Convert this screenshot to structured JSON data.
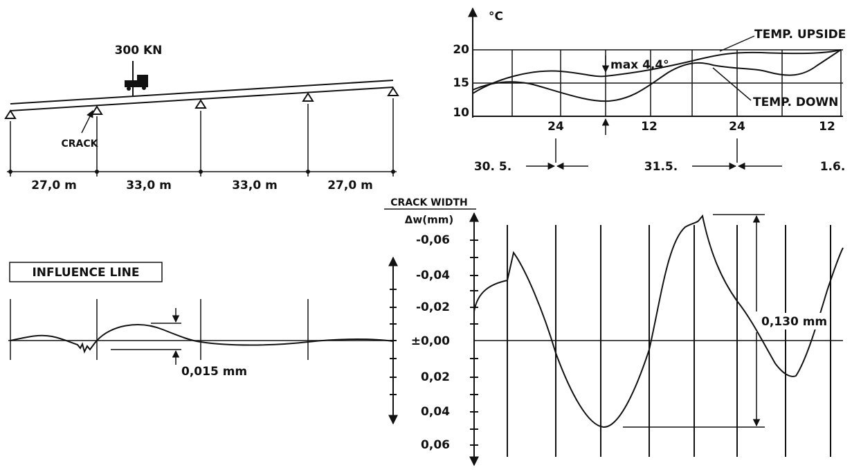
{
  "bridge": {
    "load": "300 KN",
    "crack": "CRACK",
    "spans": [
      "27,0 m",
      "33,0 m",
      "33,0 m",
      "27,0 m"
    ]
  },
  "influence": {
    "title": "INFLUENCE LINE",
    "amplitude": "0,015 mm"
  },
  "temperature": {
    "unit": "°C",
    "yticks": [
      "20",
      "15",
      "10"
    ],
    "hours": [
      "24",
      "12",
      "24",
      "12"
    ],
    "dates": [
      "30. 5.",
      "31.5.",
      "1.6."
    ],
    "max": "max 4,4°",
    "upside": "TEMP. UPSIDE",
    "down": "TEMP. DOWN"
  },
  "crack_width": {
    "title": "CRACK WIDTH",
    "unit": "Δw(mm)",
    "yticks": [
      "-0,06",
      "-0,04",
      "-0,02",
      "±0,00",
      "0,02",
      "0,04",
      "0,06"
    ],
    "range": "0,130 mm"
  }
}
